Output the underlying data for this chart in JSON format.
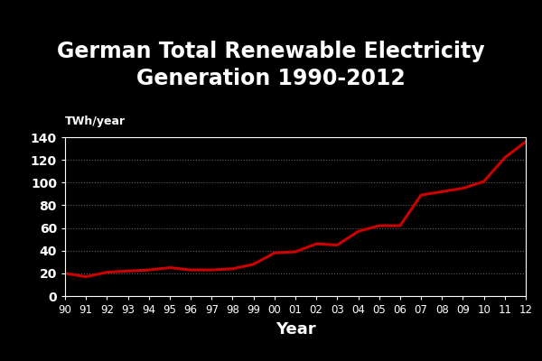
{
  "title": "German Total Renewable Electricity\nGeneration 1990-2012",
  "xlabel": "Year",
  "ylabel": "TWh/year",
  "background_color": "#000000",
  "text_color": "#ffffff",
  "line_color": "#cc0000",
  "line_width": 2.2,
  "years": [
    1990,
    1991,
    1992,
    1993,
    1994,
    1995,
    1996,
    1997,
    1998,
    1999,
    2000,
    2001,
    2002,
    2003,
    2004,
    2005,
    2006,
    2007,
    2008,
    2009,
    2010,
    2011,
    2012
  ],
  "year_labels": [
    "90",
    "91",
    "92",
    "93",
    "94",
    "95",
    "96",
    "97",
    "98",
    "99",
    "00",
    "01",
    "02",
    "03",
    "04",
    "05",
    "06",
    "07",
    "08",
    "09",
    "10",
    "11",
    "12"
  ],
  "values": [
    20,
    17,
    21,
    22,
    23,
    25,
    23,
    23,
    24,
    28,
    38,
    39,
    46,
    45,
    57,
    62,
    62,
    89,
    92,
    95,
    101,
    122,
    136
  ],
  "ylim": [
    0,
    140
  ],
  "yticks": [
    0,
    20,
    40,
    60,
    80,
    100,
    120,
    140
  ],
  "grid_color": "#888888",
  "grid_alpha": 0.7
}
